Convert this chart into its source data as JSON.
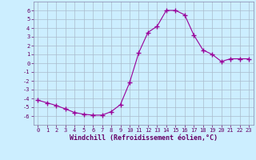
{
  "x": [
    0,
    1,
    2,
    3,
    4,
    5,
    6,
    7,
    8,
    9,
    10,
    11,
    12,
    13,
    14,
    15,
    16,
    17,
    18,
    19,
    20,
    21,
    22,
    23
  ],
  "y": [
    -4.2,
    -4.5,
    -4.8,
    -5.2,
    -5.6,
    -5.8,
    -5.9,
    -5.9,
    -5.5,
    -4.7,
    -2.2,
    1.2,
    3.5,
    4.2,
    6.0,
    6.0,
    5.5,
    3.2,
    1.5,
    1.0,
    0.2,
    0.5,
    0.5,
    0.5
  ],
  "line_color": "#990099",
  "marker": "+",
  "marker_size": 4,
  "bg_color": "#cceeff",
  "grid_color": "#aabbcc",
  "xlabel": "Windchill (Refroidissement éolien,°C)",
  "xlabel_color": "#660066",
  "xlabel_fontsize": 6,
  "xlim": [
    -0.5,
    23.5
  ],
  "ylim": [
    -7,
    7
  ],
  "yticks": [
    -6,
    -5,
    -4,
    -3,
    -2,
    -1,
    0,
    1,
    2,
    3,
    4,
    5,
    6
  ],
  "xticks": [
    0,
    1,
    2,
    3,
    4,
    5,
    6,
    7,
    8,
    9,
    10,
    11,
    12,
    13,
    14,
    15,
    16,
    17,
    18,
    19,
    20,
    21,
    22,
    23
  ],
  "tick_fontsize": 5,
  "tick_color": "#660066",
  "spine_color": "#8888aa"
}
